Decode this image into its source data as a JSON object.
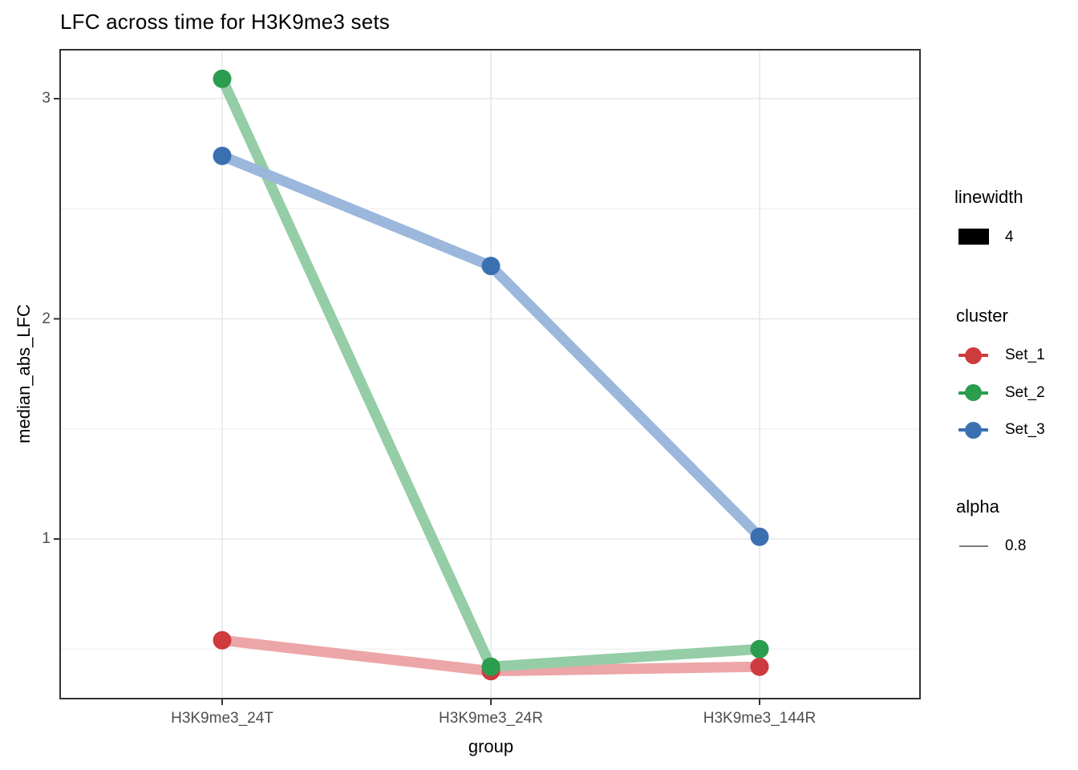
{
  "title": "LFC across time for H3K9me3 sets",
  "chart_data": {
    "type": "line",
    "title": "LFC across time for H3K9me3 sets",
    "xlabel": "group",
    "ylabel": "median_abs_LFC",
    "categories": [
      "H3K9me3_24T",
      "H3K9me3_24R",
      "H3K9me3_144R"
    ],
    "series": [
      {
        "name": "Set_1",
        "values": [
          0.54,
          0.4,
          0.42
        ],
        "point_color": "#ce3b3e",
        "line_color": "#eca6a7"
      },
      {
        "name": "Set_2",
        "values": [
          3.09,
          0.42,
          0.5
        ],
        "point_color": "#2a9d4e",
        "line_color": "#94cda6"
      },
      {
        "name": "Set_3",
        "values": [
          2.74,
          2.24,
          1.01
        ],
        "point_color": "#3b70b0",
        "line_color": "#9bb7dc"
      }
    ],
    "y_major_ticks": [
      1,
      2,
      3
    ],
    "y_minor_ticks": [
      0.5,
      1.5,
      2.5
    ],
    "ylim": [
      0.27,
      3.22
    ],
    "grid": true,
    "legend_position": "right"
  },
  "legend": {
    "linewidth": {
      "title": "linewidth",
      "value": "4",
      "key_color": "#000000"
    },
    "cluster": {
      "title": "cluster"
    },
    "alpha": {
      "title": "alpha",
      "value": "0.8",
      "key_color": "#7a7a7a"
    }
  }
}
